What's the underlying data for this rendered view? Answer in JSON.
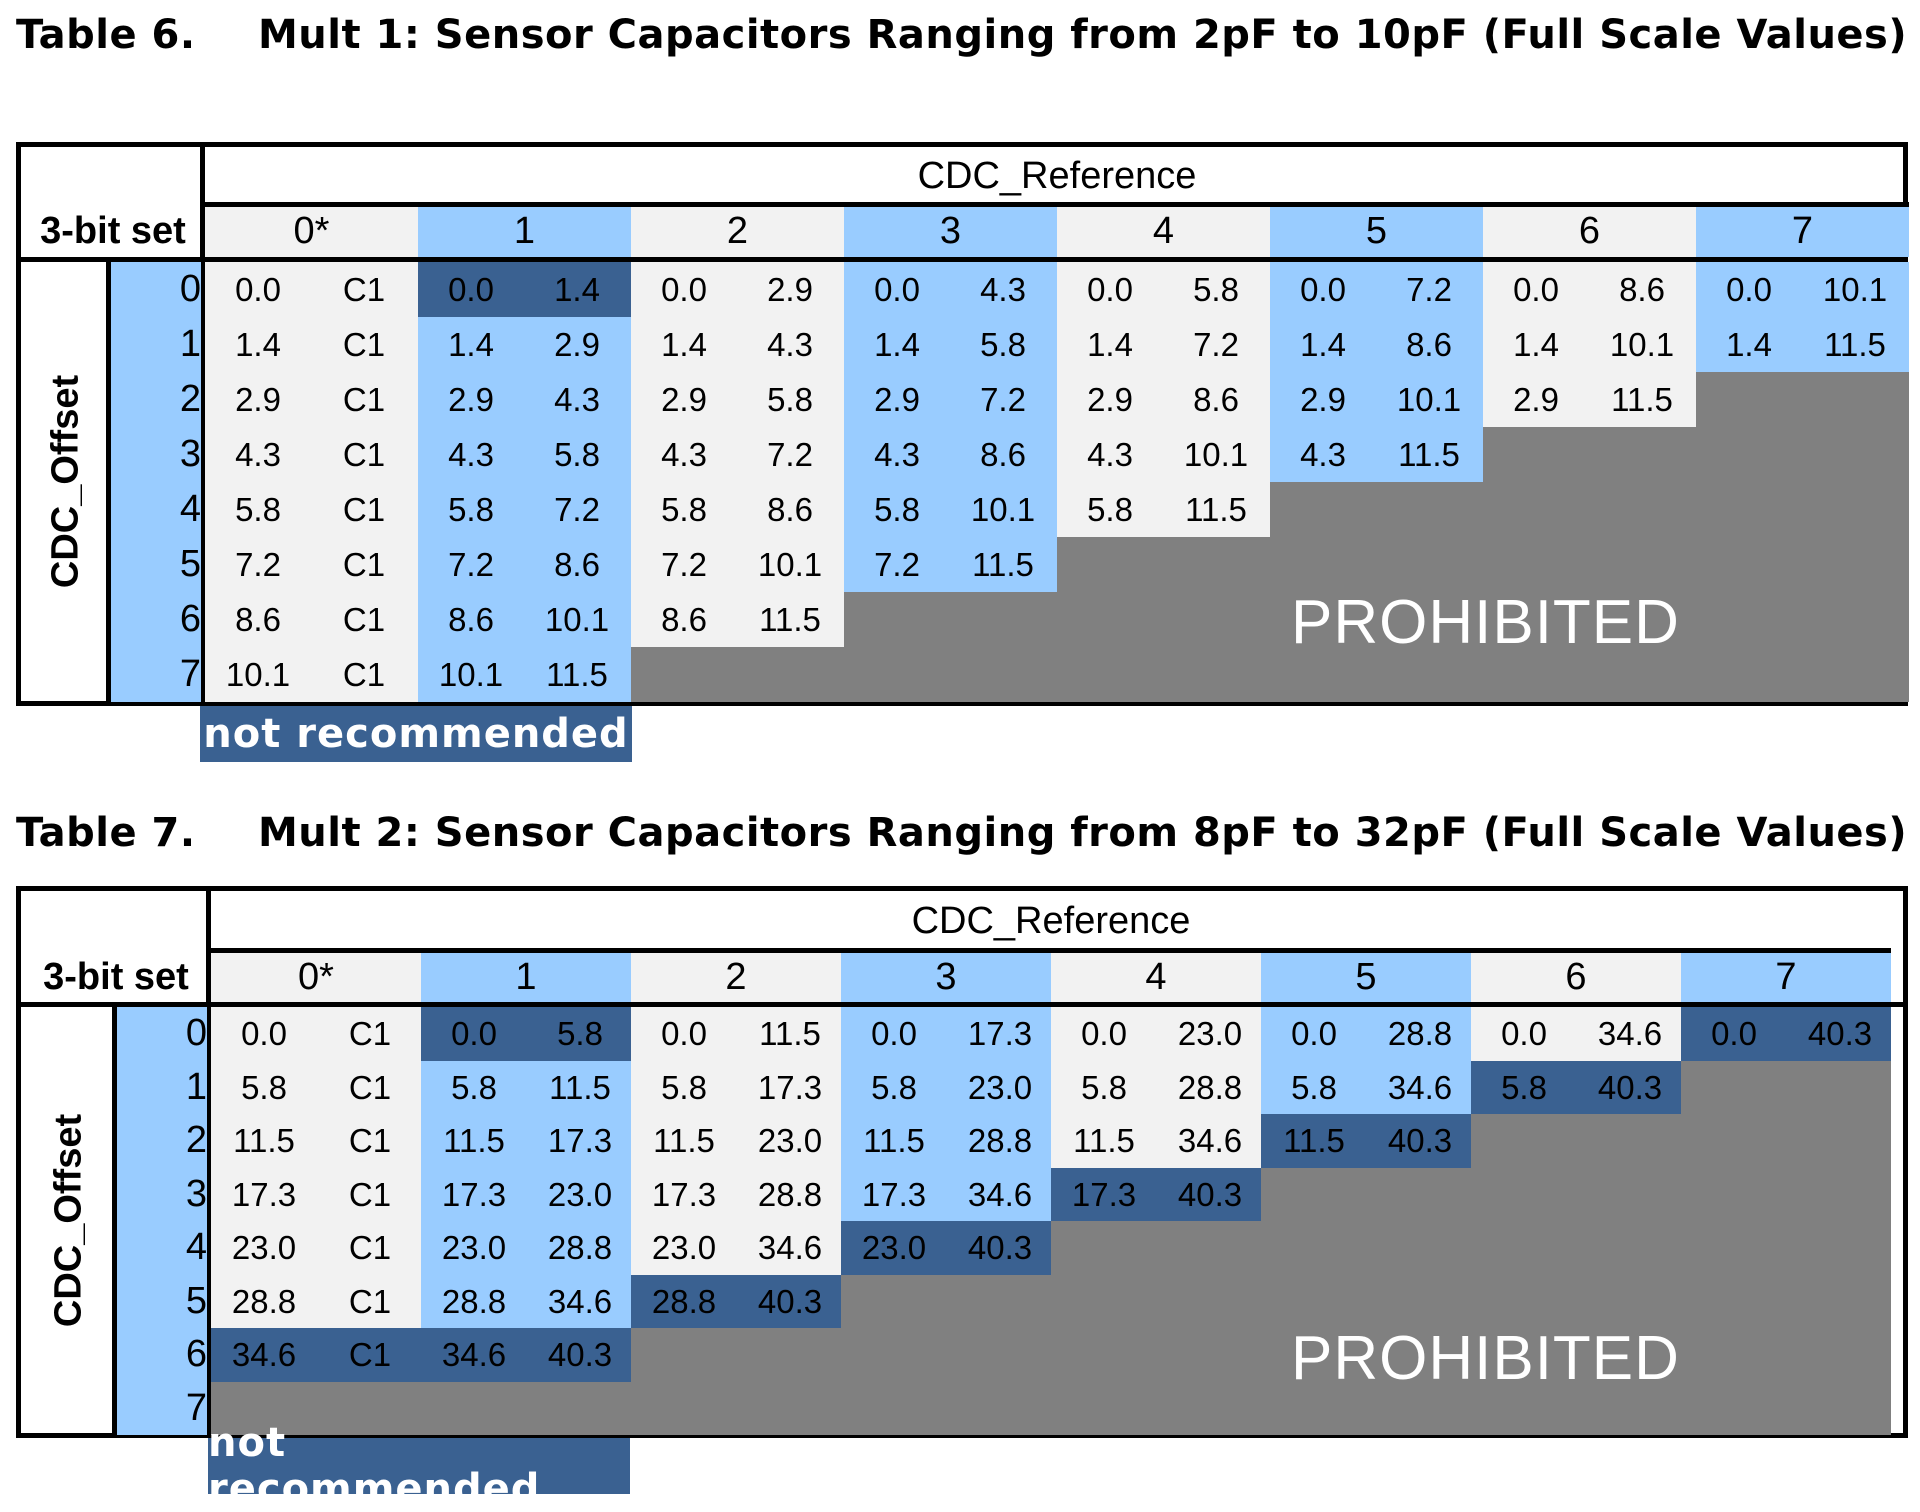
{
  "colors": {
    "light": "#f2f2f2",
    "blue": "#99ccff",
    "dark": "#3a6191",
    "prohibited": "#808080"
  },
  "tables": [
    {
      "number": "Table 6.",
      "title": "Mult 1: Sensor Capacitors Ranging from 2pF to 10pF (Full Scale Values)",
      "reference_header": "CDC_Reference",
      "set_header": "3-bit set",
      "offset_header": "CDC_Offset",
      "columns": [
        "0*",
        "1",
        "2",
        "3",
        "4",
        "5",
        "6",
        "7"
      ],
      "rows": [
        "0",
        "1",
        "2",
        "3",
        "4",
        "5",
        "6",
        "7"
      ],
      "prohibited_label": "PROHIBITED",
      "not_recommended_label": "not recommended",
      "cells": [
        [
          [
            "0.0",
            "C1"
          ],
          [
            "0.0",
            "1.4"
          ],
          [
            "0.0",
            "2.9"
          ],
          [
            "0.0",
            "4.3"
          ],
          [
            "0.0",
            "5.8"
          ],
          [
            "0.0",
            "7.2"
          ],
          [
            "0.0",
            "8.6"
          ],
          [
            "0.0",
            "10.1"
          ]
        ],
        [
          [
            "1.4",
            "C1"
          ],
          [
            "1.4",
            "2.9"
          ],
          [
            "1.4",
            "4.3"
          ],
          [
            "1.4",
            "5.8"
          ],
          [
            "1.4",
            "7.2"
          ],
          [
            "1.4",
            "8.6"
          ],
          [
            "1.4",
            "10.1"
          ],
          [
            "1.4",
            "11.5"
          ]
        ],
        [
          [
            "2.9",
            "C1"
          ],
          [
            "2.9",
            "4.3"
          ],
          [
            "2.9",
            "5.8"
          ],
          [
            "2.9",
            "7.2"
          ],
          [
            "2.9",
            "8.6"
          ],
          [
            "2.9",
            "10.1"
          ],
          [
            "2.9",
            "11.5"
          ],
          null
        ],
        [
          [
            "4.3",
            "C1"
          ],
          [
            "4.3",
            "5.8"
          ],
          [
            "4.3",
            "7.2"
          ],
          [
            "4.3",
            "8.6"
          ],
          [
            "4.3",
            "10.1"
          ],
          [
            "4.3",
            "11.5"
          ],
          null,
          null
        ],
        [
          [
            "5.8",
            "C1"
          ],
          [
            "5.8",
            "7.2"
          ],
          [
            "5.8",
            "8.6"
          ],
          [
            "5.8",
            "10.1"
          ],
          [
            "5.8",
            "11.5"
          ],
          null,
          null,
          null
        ],
        [
          [
            "7.2",
            "C1"
          ],
          [
            "7.2",
            "8.6"
          ],
          [
            "7.2",
            "10.1"
          ],
          [
            "7.2",
            "11.5"
          ],
          null,
          null,
          null,
          null
        ],
        [
          [
            "8.6",
            "C1"
          ],
          [
            "8.6",
            "10.1"
          ],
          [
            "8.6",
            "11.5"
          ],
          null,
          null,
          null,
          null,
          null
        ],
        [
          [
            "10.1",
            "C1"
          ],
          [
            "10.1",
            "11.5"
          ],
          null,
          null,
          null,
          null,
          null,
          null
        ]
      ],
      "dark_cells": [
        [
          0,
          1
        ]
      ]
    },
    {
      "number": "Table 7.",
      "title": "Mult 2: Sensor Capacitors Ranging from 8pF to 32pF (Full Scale Values)",
      "reference_header": "CDC_Reference",
      "set_header": "3-bit set",
      "offset_header": "CDC_Offset",
      "columns": [
        "0*",
        "1",
        "2",
        "3",
        "4",
        "5",
        "6",
        "7"
      ],
      "rows": [
        "0",
        "1",
        "2",
        "3",
        "4",
        "5",
        "6",
        "7"
      ],
      "prohibited_label": "PROHIBITED",
      "not_recommended_label": "not recommended",
      "cells": [
        [
          [
            "0.0",
            "C1"
          ],
          [
            "0.0",
            "5.8"
          ],
          [
            "0.0",
            "11.5"
          ],
          [
            "0.0",
            "17.3"
          ],
          [
            "0.0",
            "23.0"
          ],
          [
            "0.0",
            "28.8"
          ],
          [
            "0.0",
            "34.6"
          ],
          [
            "0.0",
            "40.3"
          ]
        ],
        [
          [
            "5.8",
            "C1"
          ],
          [
            "5.8",
            "11.5"
          ],
          [
            "5.8",
            "17.3"
          ],
          [
            "5.8",
            "23.0"
          ],
          [
            "5.8",
            "28.8"
          ],
          [
            "5.8",
            "34.6"
          ],
          [
            "5.8",
            "40.3"
          ],
          null
        ],
        [
          [
            "11.5",
            "C1"
          ],
          [
            "11.5",
            "17.3"
          ],
          [
            "11.5",
            "23.0"
          ],
          [
            "11.5",
            "28.8"
          ],
          [
            "11.5",
            "34.6"
          ],
          [
            "11.5",
            "40.3"
          ],
          null,
          null
        ],
        [
          [
            "17.3",
            "C1"
          ],
          [
            "17.3",
            "23.0"
          ],
          [
            "17.3",
            "28.8"
          ],
          [
            "17.3",
            "34.6"
          ],
          [
            "17.3",
            "40.3"
          ],
          null,
          null,
          null
        ],
        [
          [
            "23.0",
            "C1"
          ],
          [
            "23.0",
            "28.8"
          ],
          [
            "23.0",
            "34.6"
          ],
          [
            "23.0",
            "40.3"
          ],
          null,
          null,
          null,
          null
        ],
        [
          [
            "28.8",
            "C1"
          ],
          [
            "28.8",
            "34.6"
          ],
          [
            "28.8",
            "40.3"
          ],
          null,
          null,
          null,
          null,
          null
        ],
        [
          [
            "34.6",
            "C1"
          ],
          [
            "34.6",
            "40.3"
          ],
          null,
          null,
          null,
          null,
          null,
          null
        ],
        [
          null,
          null,
          null,
          null,
          null,
          null,
          null,
          null
        ]
      ],
      "dark_cells": [
        [
          0,
          1
        ],
        [
          0,
          7
        ],
        [
          1,
          6
        ],
        [
          2,
          5
        ],
        [
          3,
          4
        ],
        [
          4,
          3
        ],
        [
          5,
          2
        ],
        [
          6,
          0
        ],
        [
          6,
          1
        ]
      ]
    }
  ]
}
